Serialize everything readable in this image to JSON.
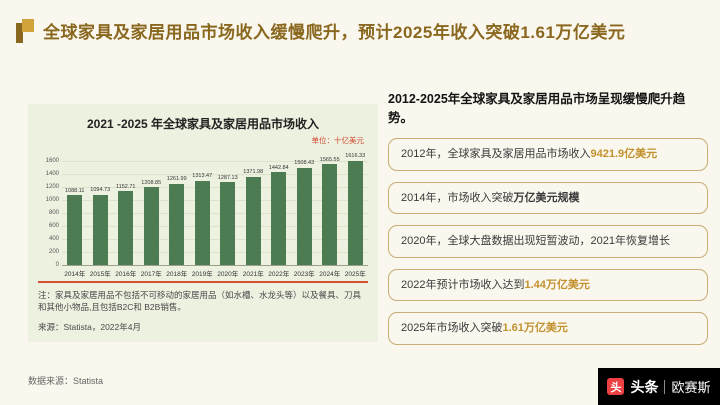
{
  "header": {
    "title": "全球家具及家居用品市场收入缓慢爬升，预计2025年收入突破1.61万亿美元"
  },
  "chart_card": {
    "title": "2021 -2025 年全球家具及家居用品市场收入",
    "unit_label": "单位：十亿美元",
    "note": "注：家具及家居用品不包括不可移动的家居用品（如水槽、水龙头等）以及餐具、刀具和其他小物品,且包括B2C和 B2B销售。",
    "source": "来源：Statista，2022年4月"
  },
  "chart_data": {
    "type": "bar",
    "title": "2021 -2025 年全球家具及家居用品市场收入",
    "unit": "十亿美元",
    "categories": [
      "2014年",
      "2015年",
      "2016年",
      "2017年",
      "2018年",
      "2019年",
      "2020年",
      "2021年",
      "2022年",
      "2023年",
      "2024年",
      "2025年"
    ],
    "values": [
      1088.11,
      1094.73,
      1152.71,
      1208.85,
      1261.99,
      1313.47,
      1287.13,
      1371.98,
      1442.84,
      1508.43,
      1565.55,
      1616.33
    ],
    "xlabel": "",
    "ylabel": "",
    "ylim": [
      0,
      1600
    ],
    "yticks": [
      0,
      200,
      400,
      600,
      800,
      1000,
      1200,
      1400,
      1600
    ],
    "grid": true,
    "legend": "none",
    "bar_color": "#4d7c53",
    "axis_line_color": "#d2512e"
  },
  "right_panel": {
    "heading": "2012-2025年全球家具及家居用品市场呈现缓慢爬升趋势。",
    "items": [
      {
        "text": "2012年，全球家具及家居用品市场收入",
        "highlight": "9421.9亿美元",
        "tail": "",
        "highlight_color": "#c3922e"
      },
      {
        "text": "2014年，市场收入突破",
        "highlight": "万亿美元规模",
        "tail": "",
        "highlight_color": "#3a3a3a"
      },
      {
        "text": "2020年，全球大盘数据出现短暂波动，2021年恢复增长",
        "highlight": "",
        "tail": "",
        "highlight_color": ""
      },
      {
        "text": "2022年预计市场收入达到",
        "highlight": "1.44万亿美元",
        "tail": "",
        "highlight_color": "#c3922e"
      },
      {
        "text": "2025年市场收入突破",
        "highlight": "1.61万亿美元",
        "tail": "",
        "highlight_color": "#c3922e"
      }
    ]
  },
  "footer": {
    "source": "数据来源：Statista"
  },
  "watermark": {
    "logo_text": "头",
    "logo_color": "#f04142",
    "brand": "头条",
    "partner": "欧赛斯"
  }
}
